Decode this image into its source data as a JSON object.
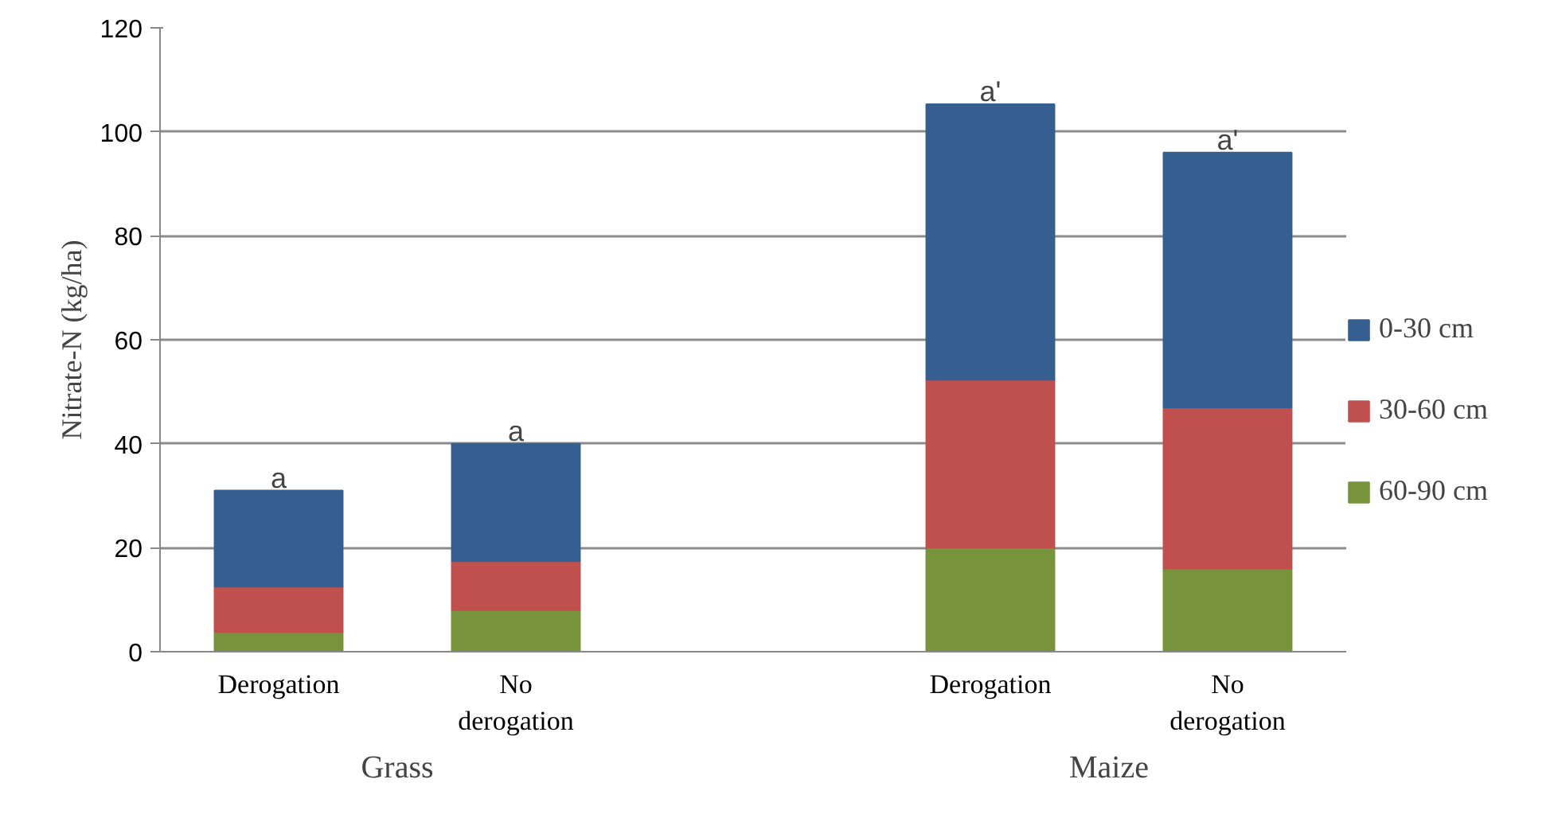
{
  "chart_data": {
    "type": "bar",
    "stacked": true,
    "ylabel": "Nitrate-N (kg/ha)",
    "categories": [
      "Derogation",
      "No derogation",
      null,
      "Derogation",
      "No derogation"
    ],
    "series": [
      {
        "name": "60-90 cm",
        "color": "#77933c",
        "values": [
          3.8,
          8.0,
          null,
          20.0,
          16.0
        ]
      },
      {
        "name": "30-60 cm",
        "color": "#c0504d",
        "values": [
          8.7,
          9.4,
          null,
          32.3,
          31.0
        ]
      },
      {
        "name": "0-30 cm",
        "color": "#365f91",
        "values": [
          18.5,
          22.6,
          null,
          53.0,
          49.0
        ]
      }
    ],
    "ylim": [
      0,
      120
    ],
    "yticks": [
      0,
      20,
      40,
      60,
      80,
      100,
      120
    ],
    "grid": "y",
    "legend": "right",
    "annotations": [
      {
        "text": "a",
        "y": 30.9
      },
      {
        "text": "a",
        "y": 40.0
      },
      {
        "text": "a'",
        "y": 105.3
      },
      {
        "text": "a'",
        "y": 96.0
      },
      "Grass",
      "Maize"
    ]
  }
}
